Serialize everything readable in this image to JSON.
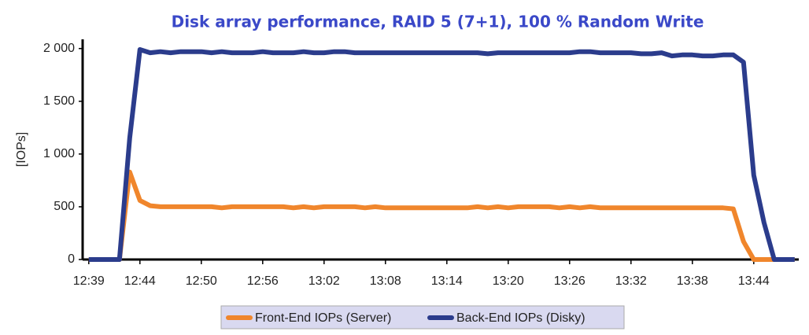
{
  "chart_data": {
    "type": "line",
    "title": "Disk array performance, RAID 5 (7+1), 100 % Random Write",
    "y_label": "[IOPs]",
    "x": [
      759,
      760,
      761,
      762,
      763,
      764,
      765,
      766,
      767,
      768,
      769,
      770,
      771,
      772,
      773,
      774,
      775,
      776,
      777,
      778,
      779,
      780,
      781,
      782,
      783,
      784,
      785,
      786,
      787,
      788,
      789,
      790,
      791,
      792,
      793,
      794,
      795,
      796,
      797,
      798,
      799,
      800,
      801,
      802,
      803,
      804,
      805,
      806,
      807,
      808,
      809,
      810,
      811,
      812,
      813,
      814,
      815,
      816,
      817,
      818,
      819,
      820,
      821,
      822,
      823,
      824,
      825,
      826,
      827,
      828
    ],
    "series": [
      {
        "name": "Front-End IOPs (Server)",
        "color": "#f0862c",
        "values": [
          0,
          0,
          0,
          0,
          830,
          560,
          510,
          500,
          500,
          500,
          500,
          500,
          500,
          490,
          500,
          500,
          500,
          500,
          500,
          500,
          490,
          500,
          490,
          500,
          500,
          500,
          500,
          490,
          500,
          490,
          490,
          490,
          490,
          490,
          490,
          490,
          490,
          490,
          500,
          490,
          500,
          490,
          500,
          500,
          500,
          500,
          490,
          500,
          490,
          500,
          490,
          490,
          490,
          490,
          490,
          490,
          490,
          490,
          490,
          490,
          490,
          490,
          490,
          480,
          170,
          0,
          0,
          0,
          0,
          0
        ]
      },
      {
        "name": "Back-End IOPs (Disky)",
        "color": "#2b3c8c",
        "values": [
          0,
          0,
          0,
          0,
          1150,
          1990,
          1960,
          1970,
          1960,
          1970,
          1970,
          1970,
          1960,
          1970,
          1960,
          1960,
          1960,
          1970,
          1960,
          1960,
          1960,
          1970,
          1960,
          1960,
          1970,
          1970,
          1960,
          1960,
          1960,
          1960,
          1960,
          1960,
          1960,
          1960,
          1960,
          1960,
          1960,
          1960,
          1960,
          1950,
          1960,
          1960,
          1960,
          1960,
          1960,
          1960,
          1960,
          1960,
          1970,
          1970,
          1960,
          1960,
          1960,
          1960,
          1950,
          1950,
          1960,
          1930,
          1940,
          1940,
          1930,
          1930,
          1940,
          1940,
          1870,
          800,
          350,
          0,
          0,
          0
        ]
      }
    ],
    "xlim": [
      758.4,
      828.4
    ],
    "xticks": [
      {
        "value": 759,
        "label": "12:39"
      },
      {
        "value": 764,
        "label": "12:44"
      },
      {
        "value": 770,
        "label": "12:50"
      },
      {
        "value": 776,
        "label": "12:56"
      },
      {
        "value": 782,
        "label": "13:02"
      },
      {
        "value": 788,
        "label": "13:08"
      },
      {
        "value": 794,
        "label": "13:14"
      },
      {
        "value": 800,
        "label": "13:20"
      },
      {
        "value": 806,
        "label": "13:26"
      },
      {
        "value": 812,
        "label": "13:32"
      },
      {
        "value": 818,
        "label": "13:38"
      },
      {
        "value": 824,
        "label": "13:44"
      }
    ],
    "ylim": [
      0,
      2050
    ],
    "yticks": [
      0,
      500,
      {
        "value": 1000,
        "label": "1 000"
      },
      {
        "value": 1500,
        "label": "1 500"
      },
      {
        "value": 2000,
        "label": "2 000"
      }
    ]
  }
}
